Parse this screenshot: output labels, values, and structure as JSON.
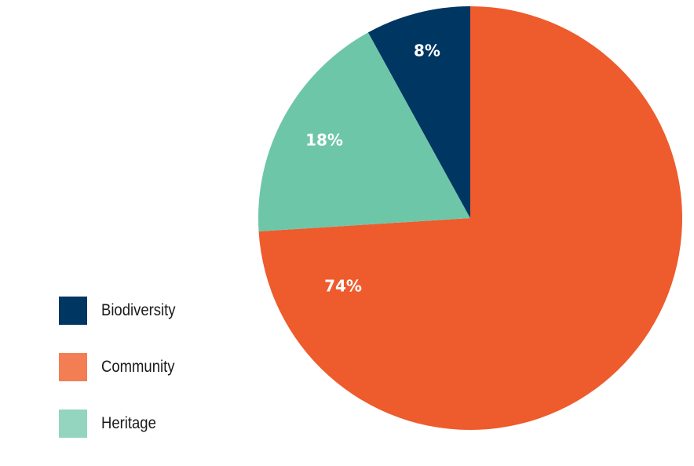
{
  "chart_data": {
    "type": "pie",
    "title": "",
    "start_angle_deg": 0,
    "direction": "clockwise",
    "slices": [
      {
        "category": "Community",
        "value": 74,
        "label": "74%",
        "color": "#EE5B2D"
      },
      {
        "category": "Heritage",
        "value": 18,
        "label": "18%",
        "color": "#6EC6A8"
      },
      {
        "category": "Biodiversity",
        "value": 8,
        "label": "8%",
        "color": "#003662"
      }
    ],
    "legend": {
      "placement": "bottom-left",
      "items": [
        {
          "label": "Biodiversity",
          "color": "#003662"
        },
        {
          "label": "Community",
          "color": "#F37E53"
        },
        {
          "label": "Heritage",
          "color": "#93D5BE"
        }
      ]
    }
  }
}
